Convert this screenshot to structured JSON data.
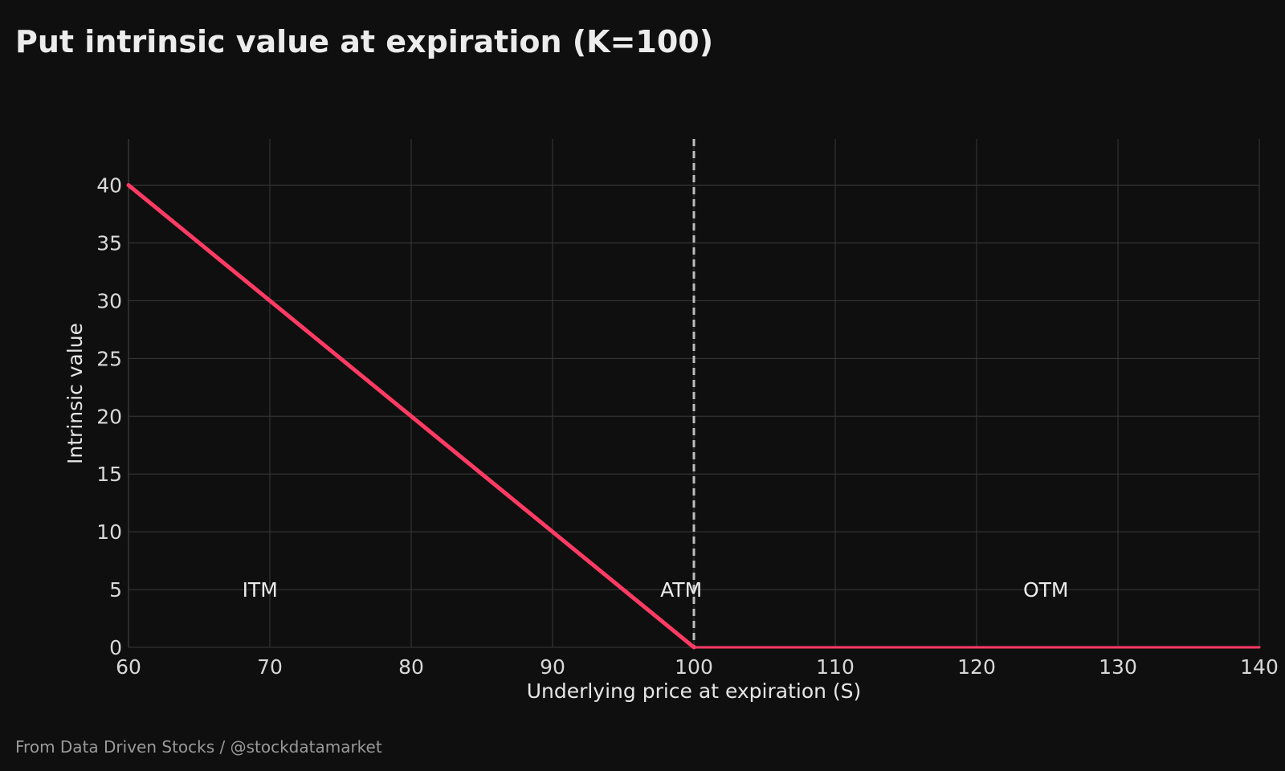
{
  "title": "Put intrinsic value at expiration (K=100)",
  "footer": "From Data Driven Stocks / @stockdatamarket",
  "chart_data": {
    "type": "line",
    "title": "Put intrinsic value at expiration (K=100)",
    "xlabel": "Underlying price at expiration (S)",
    "ylabel": "Intrinsic value",
    "xlim": [
      60,
      140
    ],
    "ylim": [
      0,
      44
    ],
    "xticks": [
      60,
      70,
      80,
      90,
      100,
      110,
      120,
      130,
      140
    ],
    "yticks": [
      0,
      5,
      10,
      15,
      20,
      25,
      30,
      35,
      40
    ],
    "grid": true,
    "series": [
      {
        "color": "#ff3b64",
        "x": [
          60,
          100,
          140
        ],
        "y": [
          40,
          0,
          0
        ]
      }
    ],
    "vline": {
      "x": 100,
      "style": "dashed",
      "color": "#bdbdbd"
    },
    "annotations": [
      {
        "text": "ITM",
        "x": 69.3,
        "y": 5
      },
      {
        "text": "ATM",
        "x": 99.1,
        "y": 5
      },
      {
        "text": "OTM",
        "x": 124.9,
        "y": 5
      }
    ]
  },
  "colors": {
    "background": "#0f0f0f",
    "line": "#ff3b64",
    "grid": "#3a3a3a",
    "text": "#e6e6e6"
  }
}
